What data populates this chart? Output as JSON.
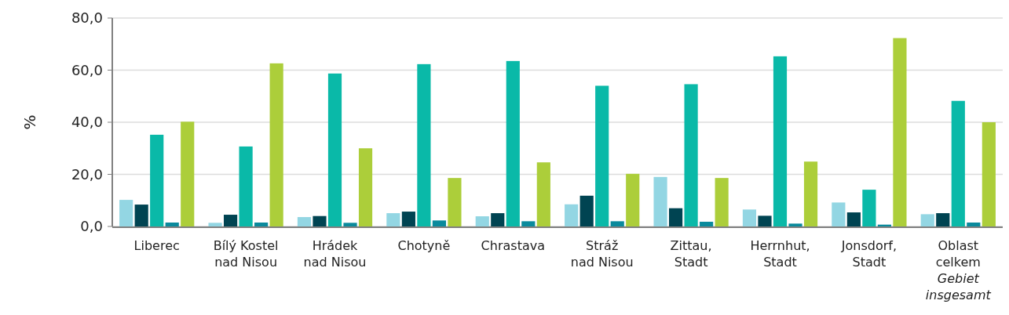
{
  "chart_data": {
    "type": "bar",
    "ylabel": "%",
    "categories": [
      "Liberec",
      "Bílý Kostel\nnad Nisou",
      "Hrádek\nnad Nisou",
      "Chotyně",
      "Chrastava",
      "Stráž\nnad Nisou",
      "Zittau,\nStadt",
      "Herrnhut,\nStadt",
      "Jonsdorf,\nStadt",
      "Oblast\ncelkem\nGebiet\ninsgesamt"
    ],
    "series": [
      {
        "color": "#93d6e3",
        "values": [
          10.2,
          1.4,
          3.6,
          5.1,
          3.9,
          8.5,
          19.0,
          6.5,
          9.2,
          4.7
        ]
      },
      {
        "color": "#004452",
        "values": [
          8.4,
          4.5,
          4.0,
          5.7,
          5.1,
          11.8,
          7.0,
          4.1,
          5.4,
          5.1
        ]
      },
      {
        "color": "#0ab9a8",
        "values": [
          35.2,
          30.7,
          58.7,
          62.3,
          63.5,
          54.0,
          54.6,
          65.3,
          14.1,
          48.2
        ]
      },
      {
        "color": "#0a8a9c",
        "values": [
          1.5,
          1.5,
          1.4,
          2.3,
          2.0,
          2.0,
          1.8,
          1.1,
          0.7,
          1.5
        ]
      },
      {
        "color": "#acce3a",
        "values": [
          40.2,
          62.6,
          30.0,
          18.6,
          24.6,
          20.2,
          18.6,
          24.9,
          72.3,
          40.0
        ]
      }
    ],
    "ylim": [
      0,
      80
    ],
    "yticks": [
      {
        "value": 0,
        "label": "0,0"
      },
      {
        "value": 20,
        "label": "20,0"
      },
      {
        "value": 40,
        "label": "40,0"
      },
      {
        "value": 60,
        "label": "60,0"
      },
      {
        "value": 80,
        "label": "80,0"
      }
    ],
    "grid": "y"
  }
}
